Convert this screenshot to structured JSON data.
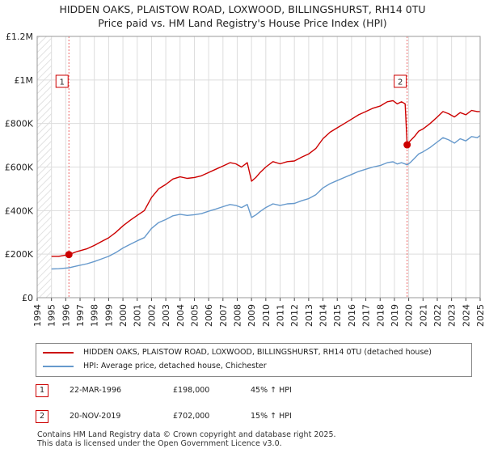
{
  "chart_data": {
    "type": "line",
    "title": "HIDDEN OAKS, PLAISTOW ROAD, LOXWOOD, BILLINGSHURST, RH14 0TU",
    "subtitle": "Price paid vs. HM Land Registry's House Price Index (HPI)",
    "xlim": [
      1994,
      2025
    ],
    "ylim": [
      0,
      1200000
    ],
    "x_ticks": [
      "1994",
      "1995",
      "1996",
      "1997",
      "1998",
      "1999",
      "2000",
      "2001",
      "2002",
      "2003",
      "2004",
      "2005",
      "2006",
      "2007",
      "2008",
      "2009",
      "2010",
      "2011",
      "2012",
      "2013",
      "2014",
      "2015",
      "2016",
      "2017",
      "2018",
      "2019",
      "2020",
      "2021",
      "2022",
      "2023",
      "2024",
      "2025"
    ],
    "y_ticks": [
      {
        "value": 0,
        "label": "£0"
      },
      {
        "value": 200000,
        "label": "£200K"
      },
      {
        "value": 400000,
        "label": "£400K"
      },
      {
        "value": 600000,
        "label": "£600K"
      },
      {
        "value": 800000,
        "label": "£800K"
      },
      {
        "value": 1000000,
        "label": "£1M"
      },
      {
        "value": 1200000,
        "label": "£1.2M"
      }
    ],
    "grid": true,
    "hatched_regions": [
      [
        1994,
        1995
      ],
      [
        2025,
        2025.5
      ]
    ],
    "series": [
      {
        "name": "HIDDEN OAKS, PLAISTOW ROAD, LOXWOOD, BILLINGSHURST, RH14 0TU (detached house)",
        "color": "#cc0000",
        "x": [
          1995.0,
          1995.5,
          1996.22,
          1996.8,
          1997.5,
          1998.0,
          1998.5,
          1999.0,
          1999.5,
          2000.0,
          2000.5,
          2001.0,
          2001.5,
          2002.0,
          2002.5,
          2003.0,
          2003.5,
          2004.0,
          2004.5,
          2005.0,
          2005.5,
          2006.0,
          2006.5,
          2007.0,
          2007.5,
          2007.9,
          2008.3,
          2008.7,
          2009.0,
          2009.3,
          2009.6,
          2010.0,
          2010.5,
          2011.0,
          2011.5,
          2012.0,
          2012.5,
          2013.0,
          2013.5,
          2014.0,
          2014.5,
          2015.0,
          2015.5,
          2016.0,
          2016.5,
          2017.0,
          2017.5,
          2018.0,
          2018.5,
          2018.9,
          2019.2,
          2019.5,
          2019.75,
          2019.89,
          2020.1,
          2020.4,
          2020.7,
          2021.0,
          2021.5,
          2022.0,
          2022.4,
          2022.8,
          2023.2,
          2023.6,
          2024.0,
          2024.4,
          2024.8,
          2025.0
        ],
        "values": [
          190000,
          190000,
          198000,
          212000,
          225000,
          240000,
          258000,
          275000,
          300000,
          330000,
          355000,
          378000,
          400000,
          460000,
          500000,
          520000,
          545000,
          555000,
          548000,
          552000,
          560000,
          575000,
          590000,
          605000,
          620000,
          615000,
          600000,
          620000,
          535000,
          552000,
          575000,
          600000,
          625000,
          615000,
          625000,
          628000,
          645000,
          660000,
          685000,
          730000,
          760000,
          780000,
          800000,
          820000,
          840000,
          855000,
          870000,
          880000,
          900000,
          905000,
          890000,
          900000,
          890000,
          702000,
          720000,
          740000,
          765000,
          775000,
          800000,
          830000,
          855000,
          845000,
          830000,
          850000,
          840000,
          860000,
          855000,
          855000
        ]
      },
      {
        "name": "HPI: Average price, detached house, Chichester",
        "color": "#6699cc",
        "x": [
          1995.0,
          1995.5,
          1996.22,
          1996.8,
          1997.5,
          1998.0,
          1998.5,
          1999.0,
          1999.5,
          2000.0,
          2000.5,
          2001.0,
          2001.5,
          2002.0,
          2002.5,
          2003.0,
          2003.5,
          2004.0,
          2004.5,
          2005.0,
          2005.5,
          2006.0,
          2006.5,
          2007.0,
          2007.5,
          2007.9,
          2008.3,
          2008.7,
          2009.0,
          2009.3,
          2009.6,
          2010.0,
          2010.5,
          2011.0,
          2011.5,
          2012.0,
          2012.5,
          2013.0,
          2013.5,
          2014.0,
          2014.5,
          2015.0,
          2015.5,
          2016.0,
          2016.5,
          2017.0,
          2017.5,
          2018.0,
          2018.5,
          2018.9,
          2019.2,
          2019.5,
          2019.75,
          2019.89,
          2020.1,
          2020.4,
          2020.7,
          2021.0,
          2021.5,
          2022.0,
          2022.4,
          2022.8,
          2023.2,
          2023.6,
          2024.0,
          2024.4,
          2024.8,
          2025.0
        ],
        "values": [
          132000,
          133000,
          137000,
          146000,
          156000,
          166000,
          178000,
          190000,
          207000,
          228000,
          245000,
          261000,
          276000,
          318000,
          345000,
          359000,
          376000,
          383000,
          378000,
          381000,
          386000,
          397000,
          407000,
          418000,
          428000,
          424000,
          414000,
          428000,
          368000,
          380000,
          396000,
          414000,
          431000,
          424000,
          431000,
          433000,
          445000,
          455000,
          473000,
          504000,
          524000,
          538000,
          552000,
          566000,
          580000,
          590000,
          600000,
          607000,
          620000,
          624000,
          614000,
          620000,
          614000,
          610000,
          620000,
          640000,
          660000,
          670000,
          690000,
          715000,
          735000,
          725000,
          710000,
          730000,
          720000,
          740000,
          735000,
          745000
        ]
      }
    ],
    "sales": [
      {
        "id": "1",
        "x": 1996.22,
        "value": 198000,
        "date": "22-MAR-1996",
        "price": "£198,000",
        "hpi": "45% ↑ HPI"
      },
      {
        "id": "2",
        "x": 2019.89,
        "value": 702000,
        "date": "20-NOV-2019",
        "price": "£702,000",
        "hpi": "15% ↑ HPI"
      }
    ]
  },
  "footer": {
    "line1": "Contains HM Land Registry data © Crown copyright and database right 2025.",
    "line2": "This data is licensed under the Open Government Licence v3.0."
  }
}
